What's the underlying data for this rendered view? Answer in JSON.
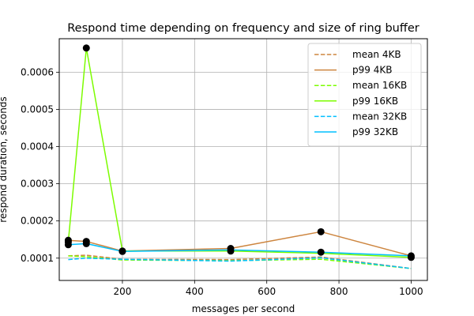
{
  "chart_data": {
    "type": "line",
    "title": "Respond time depending on frequency and size of ring buffer",
    "xlabel": "messages per second",
    "ylabel": "respond duration, seconds",
    "xlim": [
      25,
      1045
    ],
    "ylim": [
      4e-05,
      0.00069
    ],
    "xticks": [
      200,
      400,
      600,
      800,
      1000
    ],
    "xtick_labels": [
      "200",
      "400",
      "600",
      "800",
      "1000"
    ],
    "yticks": [
      0.0001,
      0.0002,
      0.0003,
      0.0004,
      0.0005,
      0.0006
    ],
    "ytick_labels": [
      "0.0001",
      "0.0002",
      "0.0003",
      "0.0004",
      "0.0005",
      "0.0006"
    ],
    "grid": true,
    "legend": "top-right",
    "x": [
      50,
      100,
      200,
      500,
      750,
      1000
    ],
    "series": [
      {
        "name": "mean 4KB",
        "values": [
          0.000106,
          0.000108,
          9.7e-05,
          9.6e-05,
          0.000103,
          7.2e-05
        ],
        "color": "#cd853f",
        "style": "dashed"
      },
      {
        "name": "p99 4KB",
        "values": [
          0.000148,
          0.000145,
          0.000119,
          0.000126,
          0.000171,
          0.000106
        ],
        "color": "#cd853f",
        "style": "solid"
      },
      {
        "name": "mean 16KB",
        "values": [
          0.000106,
          0.000104,
          9.5e-05,
          9.3e-05,
          9.7e-05,
          7.2e-05
        ],
        "color": "#7cfc00",
        "style": "dashed"
      },
      {
        "name": "p99 16KB",
        "values": [
          0.000143,
          0.000665,
          0.000119,
          0.000119,
          0.000113,
          0.000102
        ],
        "color": "#7cfc00",
        "style": "solid"
      },
      {
        "name": "mean 32KB",
        "values": [
          9.6e-05,
          0.0001,
          9.7e-05,
          9.2e-05,
          0.000101,
          7.2e-05
        ],
        "color": "#00bfff",
        "style": "dashed"
      },
      {
        "name": "p99 32KB",
        "values": [
          0.000136,
          0.000139,
          0.000118,
          0.000122,
          0.000116,
          0.000106
        ],
        "color": "#00bfff",
        "style": "solid"
      }
    ],
    "markers": {
      "color": "#000000",
      "points": [
        [
          50,
          0.000148
        ],
        [
          50,
          0.000143
        ],
        [
          50,
          0.000136
        ],
        [
          100,
          0.000665
        ],
        [
          100,
          0.000145
        ],
        [
          100,
          0.000139
        ],
        [
          200,
          0.000119
        ],
        [
          200,
          0.000118
        ],
        [
          500,
          0.000126
        ],
        [
          500,
          0.000119
        ],
        [
          750,
          0.000171
        ],
        [
          750,
          0.000116
        ],
        [
          1000,
          0.000106
        ],
        [
          1000,
          0.000102
        ]
      ]
    }
  }
}
